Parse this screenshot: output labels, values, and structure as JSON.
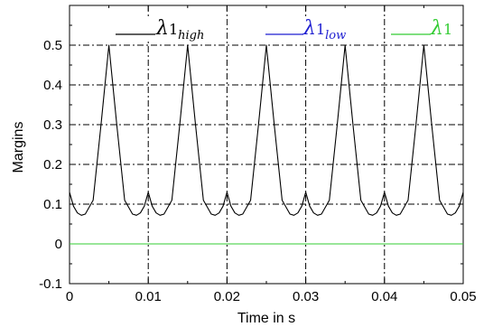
{
  "chart_data": {
    "type": "line",
    "xlabel": "Time in s",
    "ylabel": "Margins",
    "xlim": [
      0,
      0.05
    ],
    "ylim": [
      -0.1,
      0.6
    ],
    "xticks": [
      0,
      0.01,
      0.02,
      0.03,
      0.04,
      0.05
    ],
    "yticks": [
      -0.1,
      0,
      0.1,
      0.2,
      0.3,
      0.4,
      0.5
    ],
    "xtick_labels": [
      "0",
      "0.01",
      "0.02",
      "0.03",
      "0.04",
      "0.05"
    ],
    "ytick_labels": [
      "-0.1",
      "0",
      "0.1",
      "0.2",
      "0.3",
      "0.4",
      "0.5"
    ],
    "grid": true,
    "legend_placement": "top",
    "series": [
      {
        "name": "λ1_high",
        "legend_main": "λ",
        "legend_num": "1",
        "legend_sub": "high",
        "color": "#000000",
        "x": [
          0,
          0.0005,
          0.001,
          0.0015,
          0.002,
          0.003,
          0.004,
          0.005,
          0.006,
          0.007,
          0.008,
          0.0085,
          0.009,
          0.0095,
          0.01,
          0.0105,
          0.011,
          0.0115,
          0.012,
          0.013,
          0.014,
          0.015,
          0.016,
          0.017,
          0.018,
          0.0185,
          0.019,
          0.0195,
          0.02,
          0.0205,
          0.021,
          0.0215,
          0.022,
          0.023,
          0.024,
          0.025,
          0.026,
          0.027,
          0.028,
          0.0285,
          0.029,
          0.0295,
          0.03,
          0.0305,
          0.031,
          0.0315,
          0.032,
          0.033,
          0.034,
          0.035,
          0.036,
          0.037,
          0.038,
          0.0385,
          0.039,
          0.0395,
          0.04,
          0.0405,
          0.041,
          0.0415,
          0.042,
          0.043,
          0.044,
          0.045,
          0.046,
          0.047,
          0.048,
          0.0485,
          0.049,
          0.0495,
          0.05
        ],
        "y": [
          0.13,
          0.095,
          0.078,
          0.072,
          0.075,
          0.11,
          0.3,
          0.5,
          0.3,
          0.11,
          0.075,
          0.072,
          0.078,
          0.095,
          0.13,
          0.095,
          0.078,
          0.072,
          0.075,
          0.11,
          0.3,
          0.5,
          0.3,
          0.11,
          0.075,
          0.072,
          0.078,
          0.095,
          0.13,
          0.095,
          0.078,
          0.072,
          0.075,
          0.11,
          0.3,
          0.5,
          0.3,
          0.11,
          0.075,
          0.072,
          0.078,
          0.095,
          0.13,
          0.095,
          0.078,
          0.072,
          0.075,
          0.11,
          0.3,
          0.5,
          0.3,
          0.11,
          0.075,
          0.072,
          0.078,
          0.095,
          0.13,
          0.095,
          0.078,
          0.072,
          0.075,
          0.11,
          0.3,
          0.5,
          0.3,
          0.11,
          0.075,
          0.072,
          0.078,
          0.095,
          0.13
        ]
      },
      {
        "name": "λ1_low",
        "legend_main": "λ",
        "legend_num": "1",
        "legend_sub": "low",
        "color": "#1f1fd1",
        "x": [
          0,
          0.05
        ],
        "y": [
          0,
          0
        ]
      },
      {
        "name": "λ1",
        "legend_main": "λ",
        "legend_num": "1",
        "legend_sub": "",
        "color": "#33cc33",
        "x": [
          0,
          0.05
        ],
        "y": [
          0,
          0
        ]
      }
    ]
  }
}
